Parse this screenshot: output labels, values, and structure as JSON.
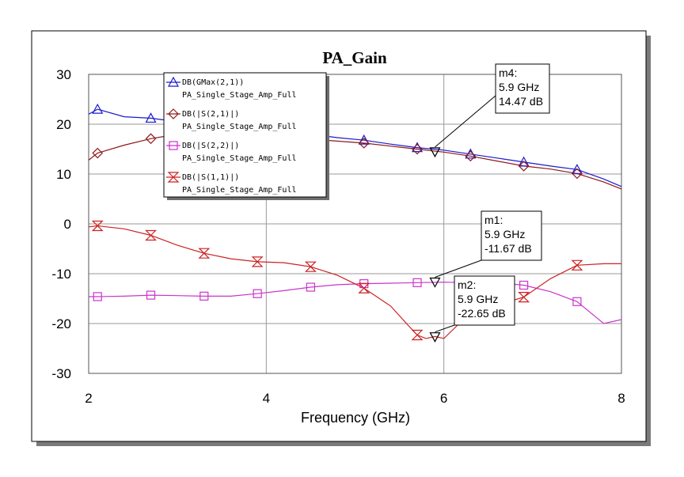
{
  "chart_data": {
    "type": "line",
    "title": "PA_Gain",
    "xlabel": "Frequency (GHz)",
    "ylabel": "",
    "xlim": [
      2,
      8
    ],
    "ylim": [
      -30,
      30
    ],
    "xticks": [
      2,
      4,
      6,
      8
    ],
    "yticks": [
      30,
      20,
      10,
      0,
      -10,
      -20,
      -30
    ],
    "grid": true,
    "legend_position": "top-left",
    "series": [
      {
        "name": "DB(GMax(2,1))",
        "source": "PA_Single_Stage_Amp_Full",
        "color": "#1a1acd",
        "marker": "triangle-up",
        "x": [
          2.0,
          2.1,
          2.4,
          2.7,
          3.0,
          3.3,
          3.6,
          3.9,
          4.2,
          4.5,
          4.8,
          5.1,
          5.4,
          5.7,
          6.0,
          6.3,
          6.6,
          6.9,
          7.2,
          7.5,
          7.8,
          8.0
        ],
        "values": [
          22.0,
          23.0,
          21.5,
          21.2,
          20.5,
          20.0,
          19.5,
          19.0,
          18.5,
          18.0,
          17.3,
          16.8,
          16.0,
          15.3,
          14.8,
          14.0,
          13.2,
          12.4,
          11.6,
          10.9,
          9.0,
          7.5
        ]
      },
      {
        "name": "DB(|S(2,1)|)",
        "source": "PA_Single_Stage_Amp_Full",
        "color": "#8b1a1a",
        "marker": "diamond",
        "x": [
          2.0,
          2.1,
          2.4,
          2.7,
          3.0,
          3.3,
          3.6,
          3.9,
          4.2,
          4.5,
          4.8,
          5.1,
          5.4,
          5.7,
          6.0,
          6.3,
          6.6,
          6.9,
          7.2,
          7.5,
          7.8,
          8.0
        ],
        "values": [
          12.8,
          14.2,
          15.8,
          17.1,
          18.0,
          18.5,
          18.3,
          18.0,
          17.6,
          17.0,
          16.6,
          16.2,
          15.6,
          15.0,
          14.4,
          13.6,
          12.6,
          11.6,
          11.0,
          10.1,
          8.4,
          7.0
        ]
      },
      {
        "name": "DB(|S(2,2)|)",
        "source": "PA_Single_Stage_Amp_Full",
        "color": "#cc33cc",
        "marker": "square",
        "x": [
          2.0,
          2.1,
          2.4,
          2.7,
          3.0,
          3.3,
          3.6,
          3.9,
          4.2,
          4.5,
          4.8,
          5.1,
          5.4,
          5.7,
          6.0,
          6.3,
          6.6,
          6.9,
          7.2,
          7.5,
          7.8,
          8.0
        ],
        "values": [
          -14.6,
          -14.6,
          -14.5,
          -14.3,
          -14.4,
          -14.5,
          -14.5,
          -14.0,
          -13.4,
          -12.7,
          -12.2,
          -12.0,
          -11.9,
          -11.8,
          -11.7,
          -11.8,
          -11.8,
          -12.3,
          -13.6,
          -15.6,
          -20.0,
          -19.2
        ]
      },
      {
        "name": "DB(|S(1,1)|)",
        "source": "PA_Single_Stage_Amp_Full",
        "color": "#cc2222",
        "marker": "hourglass",
        "x": [
          2.0,
          2.1,
          2.4,
          2.7,
          3.0,
          3.3,
          3.6,
          3.9,
          4.2,
          4.5,
          4.8,
          5.1,
          5.4,
          5.6,
          5.7,
          5.8,
          5.9,
          6.0,
          6.3,
          6.6,
          6.9,
          7.2,
          7.5,
          7.8,
          8.0
        ],
        "values": [
          -0.6,
          -0.4,
          -1.0,
          -2.3,
          -4.3,
          -5.9,
          -7.0,
          -7.6,
          -7.8,
          -8.6,
          -10.3,
          -12.9,
          -16.5,
          -20.4,
          -22.3,
          -23.0,
          -22.6,
          -23.0,
          -17.8,
          -16.3,
          -14.7,
          -11.0,
          -8.3,
          -8.0,
          -8.0
        ]
      }
    ],
    "markers": [
      {
        "name": "m4",
        "freq": "5.9 GHz",
        "value": "14.47 dB",
        "x": 5.9,
        "y": 14.47,
        "series": "DB(GMax(2,1))"
      },
      {
        "name": "m1",
        "freq": "5.9 GHz",
        "value": "-11.67 dB",
        "x": 5.9,
        "y": -11.67,
        "series": "DB(|S(2,2)|)"
      },
      {
        "name": "m2",
        "freq": "5.9 GHz",
        "value": "-22.65 dB",
        "x": 5.9,
        "y": -22.65,
        "series": "DB(|S(1,1)|)"
      }
    ]
  }
}
